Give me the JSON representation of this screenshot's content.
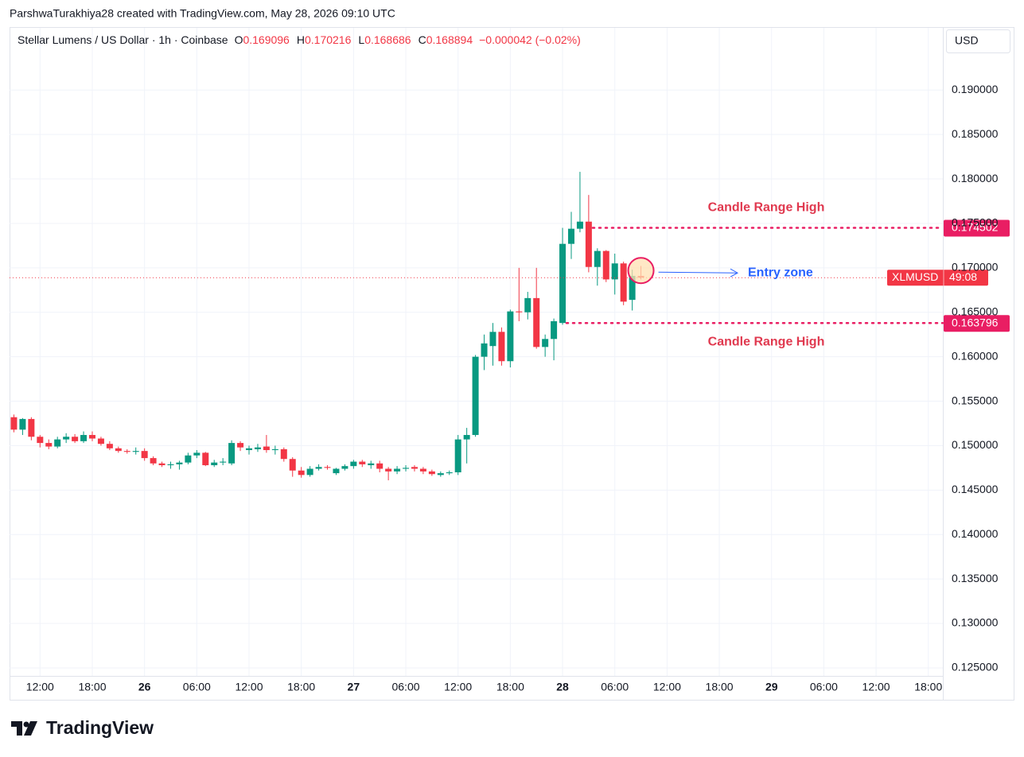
{
  "attribution": "ParshwaTurakhiya28 created with TradingView.com, May 28, 2026 09:10 UTC",
  "brand": "TradingView",
  "chart_data": {
    "type": "candlestick",
    "title": "Stellar Lumens / US Dollar · 1h · Coinbase",
    "currency": "USD",
    "legend_labels": [
      "O",
      "H",
      "L",
      "C"
    ],
    "change": "−0.000042 (−0.02%)",
    "countdown": "49:08",
    "x": [
      "2026-05-25T09:00",
      "2026-05-25T10:00",
      "2026-05-25T11:00",
      "2026-05-25T12:00",
      "2026-05-25T13:00",
      "2026-05-25T14:00",
      "2026-05-25T15:00",
      "2026-05-25T16:00",
      "2026-05-25T17:00",
      "2026-05-25T18:00",
      "2026-05-25T19:00",
      "2026-05-25T20:00",
      "2026-05-25T21:00",
      "2026-05-25T22:00",
      "2026-05-25T23:00",
      "2026-05-26T00:00",
      "2026-05-26T01:00",
      "2026-05-26T02:00",
      "2026-05-26T03:00",
      "2026-05-26T04:00",
      "2026-05-26T05:00",
      "2026-05-26T06:00",
      "2026-05-26T07:00",
      "2026-05-26T08:00",
      "2026-05-26T09:00",
      "2026-05-26T10:00",
      "2026-05-26T11:00",
      "2026-05-26T12:00",
      "2026-05-26T13:00",
      "2026-05-26T14:00",
      "2026-05-26T15:00",
      "2026-05-26T16:00",
      "2026-05-26T17:00",
      "2026-05-26T18:00",
      "2026-05-26T19:00",
      "2026-05-26T20:00",
      "2026-05-26T21:00",
      "2026-05-26T22:00",
      "2026-05-26T23:00",
      "2026-05-27T00:00",
      "2026-05-27T01:00",
      "2026-05-27T02:00",
      "2026-05-27T03:00",
      "2026-05-27T04:00",
      "2026-05-27T05:00",
      "2026-05-27T06:00",
      "2026-05-27T07:00",
      "2026-05-27T08:00",
      "2026-05-27T09:00",
      "2026-05-27T10:00",
      "2026-05-27T11:00",
      "2026-05-27T12:00",
      "2026-05-27T13:00",
      "2026-05-27T14:00",
      "2026-05-27T15:00",
      "2026-05-27T16:00",
      "2026-05-27T17:00",
      "2026-05-27T18:00",
      "2026-05-27T19:00",
      "2026-05-27T20:00",
      "2026-05-27T21:00",
      "2026-05-27T22:00",
      "2026-05-27T23:00",
      "2026-05-28T00:00",
      "2026-05-28T01:00",
      "2026-05-28T02:00",
      "2026-05-28T03:00",
      "2026-05-28T04:00",
      "2026-05-28T05:00",
      "2026-05-28T06:00",
      "2026-05-28T07:00",
      "2026-05-28T08:00",
      "2026-05-28T09:00"
    ],
    "series": [
      {
        "name": "XLMUSD",
        "up_color": "#089981",
        "down_color": "#f23645",
        "open": [
          0.1532,
          0.1518,
          0.153,
          0.151,
          0.1503,
          0.1499,
          0.1507,
          0.151,
          0.1505,
          0.1512,
          0.1508,
          0.1502,
          0.1497,
          0.1494,
          0.1493,
          0.1494,
          0.1486,
          0.148,
          0.1478,
          0.1479,
          0.1481,
          0.1489,
          0.1492,
          0.1478,
          0.1481,
          0.148,
          0.1503,
          0.1495,
          0.1496,
          0.1499,
          0.1495,
          0.1496,
          0.1485,
          0.1472,
          0.1467,
          0.1474,
          0.1476,
          0.1469,
          0.1474,
          0.1477,
          0.1482,
          0.1478,
          0.148,
          0.1474,
          0.1471,
          0.1474,
          0.1476,
          0.1474,
          0.1471,
          0.1467,
          0.1469,
          0.147,
          0.1507,
          0.1512,
          0.16,
          0.1612,
          0.1628,
          0.1595,
          0.1651,
          0.165,
          0.1666,
          0.1611,
          0.162,
          0.1638,
          0.1727,
          0.1744,
          0.1752,
          0.1701,
          0.1719,
          0.1687,
          0.1705,
          0.1664,
          0.169096
        ],
        "high": [
          0.1535,
          0.1531,
          0.1532,
          0.1512,
          0.1507,
          0.151,
          0.1514,
          0.1513,
          0.1516,
          0.1516,
          0.151,
          0.1505,
          0.1499,
          0.1496,
          0.1498,
          0.1497,
          0.1488,
          0.1482,
          0.1482,
          0.1483,
          0.1492,
          0.1495,
          0.1493,
          0.1484,
          0.1486,
          0.1506,
          0.1505,
          0.15,
          0.1502,
          0.1512,
          0.15,
          0.1498,
          0.1487,
          0.1476,
          0.1477,
          0.1479,
          0.1478,
          0.1475,
          0.1479,
          0.1484,
          0.1484,
          0.1483,
          0.1483,
          0.1476,
          0.1477,
          0.1478,
          0.1478,
          0.1476,
          0.1473,
          0.1471,
          0.1472,
          0.1512,
          0.152,
          0.1602,
          0.1625,
          0.1638,
          0.1633,
          0.1653,
          0.17,
          0.1673,
          0.17,
          0.1625,
          0.1643,
          0.1745,
          0.1763,
          0.1808,
          0.1782,
          0.1722,
          0.172,
          0.1716,
          0.1707,
          0.1698,
          0.170216
        ],
        "low": [
          0.1515,
          0.1512,
          0.1506,
          0.1498,
          0.1496,
          0.1497,
          0.1503,
          0.1503,
          0.1503,
          0.1505,
          0.15,
          0.1495,
          0.1492,
          0.1491,
          0.149,
          0.1483,
          0.1478,
          0.1476,
          0.1474,
          0.1473,
          0.1479,
          0.1486,
          0.1477,
          0.1476,
          0.1478,
          0.1478,
          0.1494,
          0.149,
          0.1493,
          0.1492,
          0.149,
          0.1482,
          0.1465,
          0.1464,
          0.1465,
          0.1472,
          0.1473,
          0.1467,
          0.1472,
          0.1474,
          0.1476,
          0.1474,
          0.147,
          0.1461,
          0.1468,
          0.1471,
          0.1471,
          0.1468,
          0.1466,
          0.1465,
          0.1467,
          0.1467,
          0.148,
          0.151,
          0.1585,
          0.159,
          0.159,
          0.1588,
          0.164,
          0.1642,
          0.1609,
          0.16,
          0.1596,
          0.1636,
          0.171,
          0.174,
          0.1695,
          0.168,
          0.1684,
          0.167,
          0.1658,
          0.1652,
          0.168686
        ],
        "close": [
          0.1518,
          0.153,
          0.151,
          0.1503,
          0.1499,
          0.1507,
          0.151,
          0.1505,
          0.1512,
          0.1508,
          0.1502,
          0.1497,
          0.1494,
          0.1493,
          0.1494,
          0.1486,
          0.148,
          0.1478,
          0.1479,
          0.1481,
          0.1489,
          0.1492,
          0.1478,
          0.1481,
          0.1482,
          0.1503,
          0.1498,
          0.1497,
          0.1498,
          0.1495,
          0.1496,
          0.1485,
          0.1472,
          0.1467,
          0.1474,
          0.1476,
          0.1475,
          0.1474,
          0.1477,
          0.1482,
          0.1479,
          0.148,
          0.1474,
          0.1471,
          0.1474,
          0.1475,
          0.1474,
          0.1471,
          0.1468,
          0.1469,
          0.147,
          0.1507,
          0.1512,
          0.16,
          0.1615,
          0.1628,
          0.1595,
          0.1651,
          0.165,
          0.1666,
          0.1611,
          0.162,
          0.164,
          0.1727,
          0.1744,
          0.1752,
          0.1701,
          0.1719,
          0.1687,
          0.1705,
          0.1662,
          0.1691,
          0.168894
        ]
      }
    ],
    "xlim": [
      "2026-05-25T08:30",
      "2026-05-29T19:40"
    ],
    "xticks": [
      {
        "value": "2026-05-25T12:00",
        "label": "12:00"
      },
      {
        "value": "2026-05-25T18:00",
        "label": "18:00"
      },
      {
        "value": "2026-05-26T00:00",
        "label": "26"
      },
      {
        "value": "2026-05-26T06:00",
        "label": "06:00"
      },
      {
        "value": "2026-05-26T12:00",
        "label": "12:00"
      },
      {
        "value": "2026-05-26T18:00",
        "label": "18:00"
      },
      {
        "value": "2026-05-27T00:00",
        "label": "27"
      },
      {
        "value": "2026-05-27T06:00",
        "label": "06:00"
      },
      {
        "value": "2026-05-27T12:00",
        "label": "12:00"
      },
      {
        "value": "2026-05-27T18:00",
        "label": "18:00"
      },
      {
        "value": "2026-05-28T00:00",
        "label": "28"
      },
      {
        "value": "2026-05-28T06:00",
        "label": "06:00"
      },
      {
        "value": "2026-05-28T12:00",
        "label": "12:00"
      },
      {
        "value": "2026-05-28T18:00",
        "label": "18:00"
      },
      {
        "value": "2026-05-29T00:00",
        "label": "29"
      },
      {
        "value": "2026-05-29T06:00",
        "label": "06:00"
      },
      {
        "value": "2026-05-29T12:00",
        "label": "12:00"
      },
      {
        "value": "2026-05-29T18:00",
        "label": "18:00"
      }
    ],
    "ylim": [
      0.1241,
      0.197
    ],
    "yticks": [
      {
        "value": 0.125,
        "label": "0.125000"
      },
      {
        "value": 0.13,
        "label": "0.130000"
      },
      {
        "value": 0.135,
        "label": "0.135000"
      },
      {
        "value": 0.14,
        "label": "0.140000"
      },
      {
        "value": 0.145,
        "label": "0.145000"
      },
      {
        "value": 0.15,
        "label": "0.150000"
      },
      {
        "value": 0.155,
        "label": "0.155000"
      },
      {
        "value": 0.16,
        "label": "0.160000"
      },
      {
        "value": 0.165,
        "label": "0.165000"
      },
      {
        "value": 0.17,
        "label": "0.170000"
      },
      {
        "value": 0.175,
        "label": "0.175000"
      },
      {
        "value": 0.18,
        "label": "0.180000"
      },
      {
        "value": 0.185,
        "label": "0.185000"
      },
      {
        "value": 0.19,
        "label": "0.190000"
      }
    ],
    "grid": true,
    "price_lines": [
      {
        "value": 0.174502,
        "color": "#e91e63"
      },
      {
        "value": 0.163796,
        "color": "#e91e63"
      }
    ],
    "annotations": [
      "Candle Range High",
      "Entry zone",
      "Candle Range High"
    ]
  }
}
